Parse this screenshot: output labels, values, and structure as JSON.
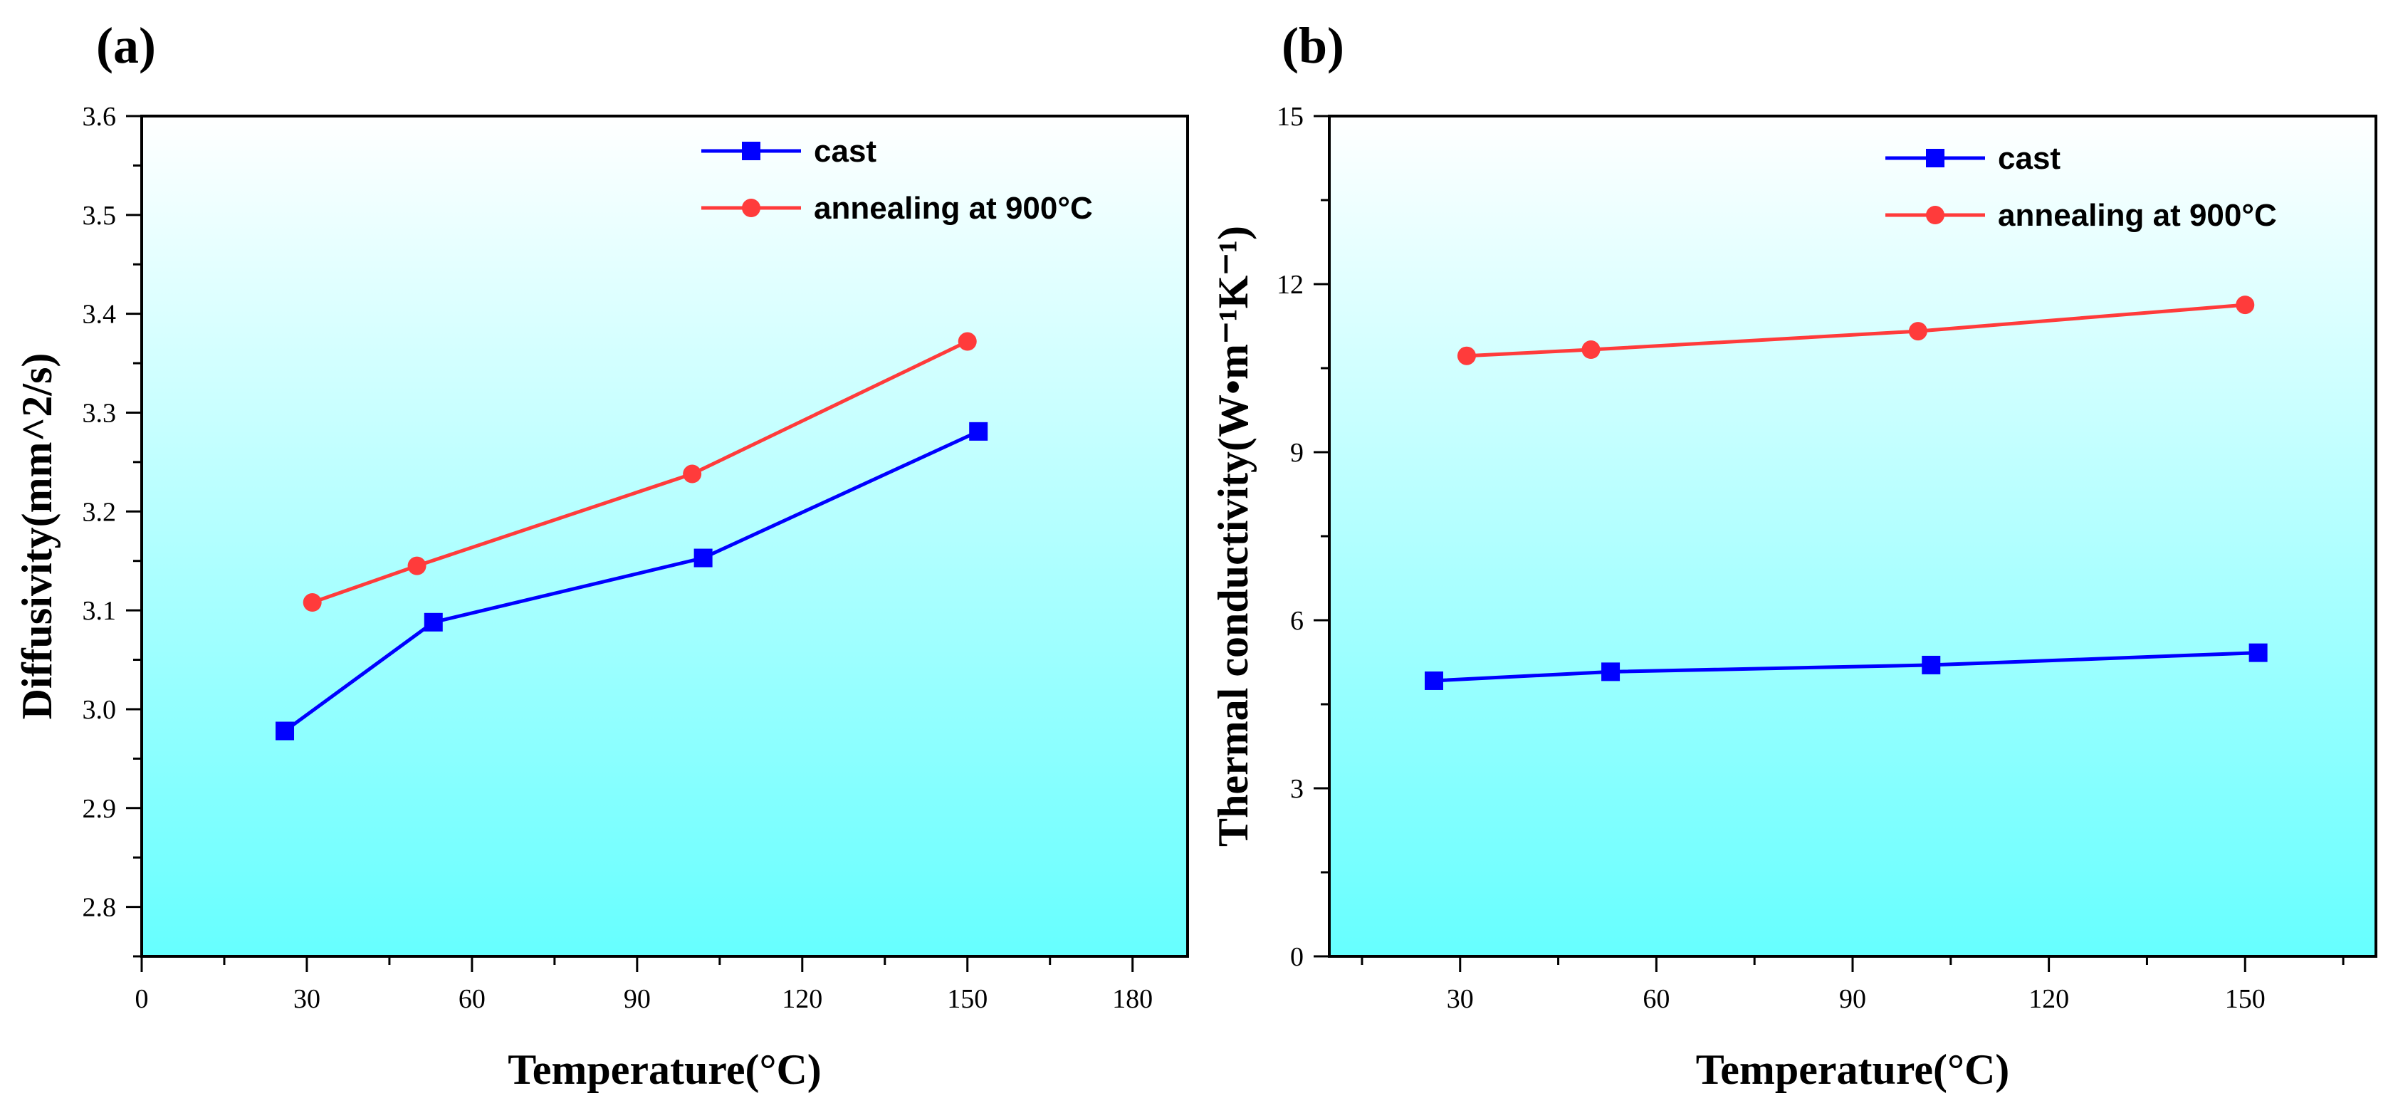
{
  "colors": {
    "cast": "#0000ff",
    "annealing": "#ff3b3b",
    "bg_top": "#ffffff",
    "bg_bottom": "#66ffff"
  },
  "chart_data": [
    {
      "panel": "(a)",
      "type": "line",
      "xlabel": "Temperature(°C)",
      "ylabel": "Diffusivity(mm^2/s)",
      "xlim": [
        0,
        190
      ],
      "ylim": [
        2.75,
        3.6
      ],
      "xticks": [
        0,
        30,
        60,
        90,
        120,
        150,
        180
      ],
      "yticks": [
        2.8,
        2.9,
        3.0,
        3.1,
        3.2,
        3.3,
        3.4,
        3.5,
        3.6
      ],
      "xtick_labels": [
        "0",
        "30",
        "60",
        "90",
        "120",
        "150",
        "180"
      ],
      "ytick_labels": [
        "2.8",
        "2.9",
        "3.0",
        "3.1",
        "3.2",
        "3.3",
        "3.4",
        "3.5",
        "3.6"
      ],
      "legend_position": "top-right",
      "series": [
        {
          "name": "cast",
          "marker": "square",
          "x": [
            26,
            53,
            102,
            152
          ],
          "y": [
            2.978,
            3.088,
            3.153,
            3.281
          ]
        },
        {
          "name": "annealing at 900°C",
          "marker": "circle",
          "x": [
            31,
            50,
            100,
            150
          ],
          "y": [
            3.108,
            3.145,
            3.238,
            3.372
          ]
        }
      ]
    },
    {
      "panel": "(b)",
      "type": "line",
      "xlabel": "Temperature(°C)",
      "ylabel": "Thermal conductivity(W•m⁻¹K⁻¹)",
      "xlim": [
        10,
        170
      ],
      "ylim": [
        0,
        15
      ],
      "xticks": [
        30,
        60,
        90,
        120,
        150
      ],
      "yticks": [
        0,
        3,
        6,
        9,
        12,
        15
      ],
      "xtick_labels": [
        "30",
        "60",
        "90",
        "120",
        "150"
      ],
      "ytick_labels": [
        "0",
        "3",
        "6",
        "9",
        "12",
        "15"
      ],
      "legend_position": "top-right",
      "series": [
        {
          "name": "cast",
          "marker": "square",
          "x": [
            26,
            53,
            102,
            152
          ],
          "y": [
            4.92,
            5.08,
            5.2,
            5.42
          ]
        },
        {
          "name": "annealing at 900°C",
          "marker": "circle",
          "x": [
            31,
            50,
            100,
            150
          ],
          "y": [
            10.72,
            10.83,
            11.16,
            11.63
          ]
        }
      ]
    }
  ]
}
